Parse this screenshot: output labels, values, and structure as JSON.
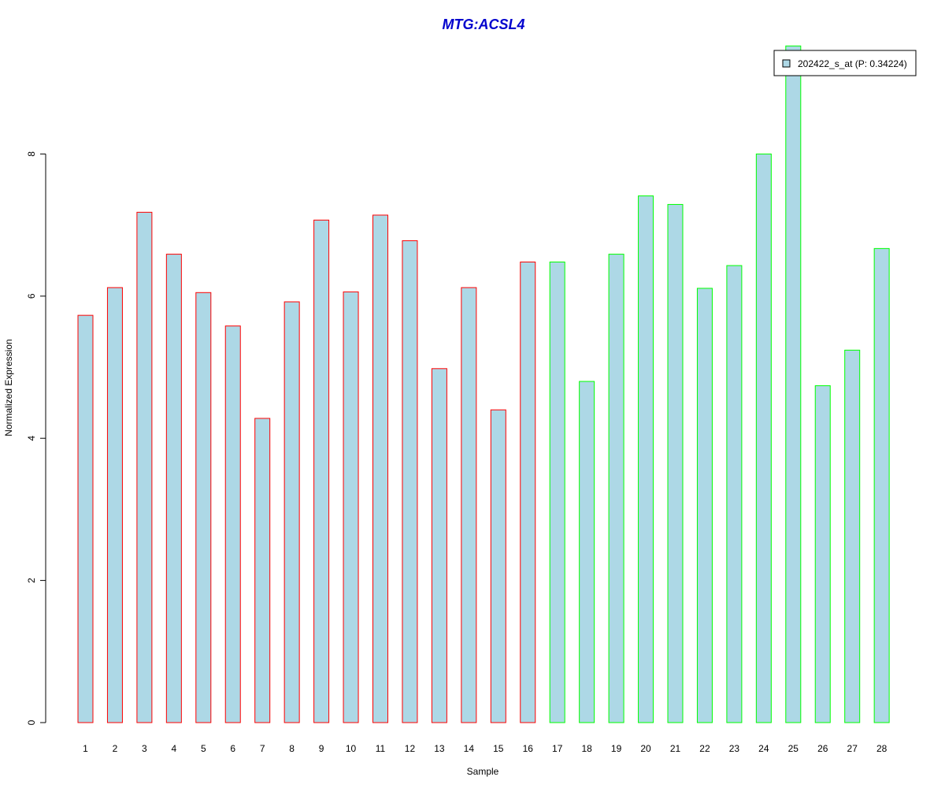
{
  "chart_data": {
    "type": "bar",
    "title": "MTG:ACSL4",
    "xlabel": "Sample",
    "ylabel": "Normalized Expression",
    "categories": [
      "1",
      "2",
      "3",
      "4",
      "5",
      "6",
      "7",
      "8",
      "9",
      "10",
      "11",
      "12",
      "13",
      "14",
      "15",
      "16",
      "17",
      "18",
      "19",
      "20",
      "21",
      "22",
      "23",
      "24",
      "25",
      "26",
      "27",
      "28"
    ],
    "series": [
      {
        "name": "202422_s_at (P: 0.34224)",
        "values": [
          5.73,
          6.12,
          7.18,
          6.59,
          6.05,
          5.58,
          4.28,
          5.92,
          7.07,
          6.06,
          7.14,
          6.78,
          4.98,
          6.12,
          4.4,
          6.48,
          6.48,
          4.8,
          6.59,
          7.41,
          7.29,
          6.11,
          6.43,
          8.0,
          9.52,
          4.74,
          5.24,
          6.67
        ]
      }
    ],
    "groups": [
      {
        "samples": [
          1,
          16
        ],
        "border_color": "#ff0000"
      },
      {
        "samples": [
          17,
          28
        ],
        "border_color": "#00ff00"
      }
    ],
    "yticks": [
      0,
      2,
      4,
      6,
      8
    ],
    "ylim": [
      0,
      9.52
    ],
    "grid": false,
    "legend_position": "top-right",
    "colors": {
      "bar_fill": "#add8e6",
      "title": "#0000cd"
    }
  }
}
